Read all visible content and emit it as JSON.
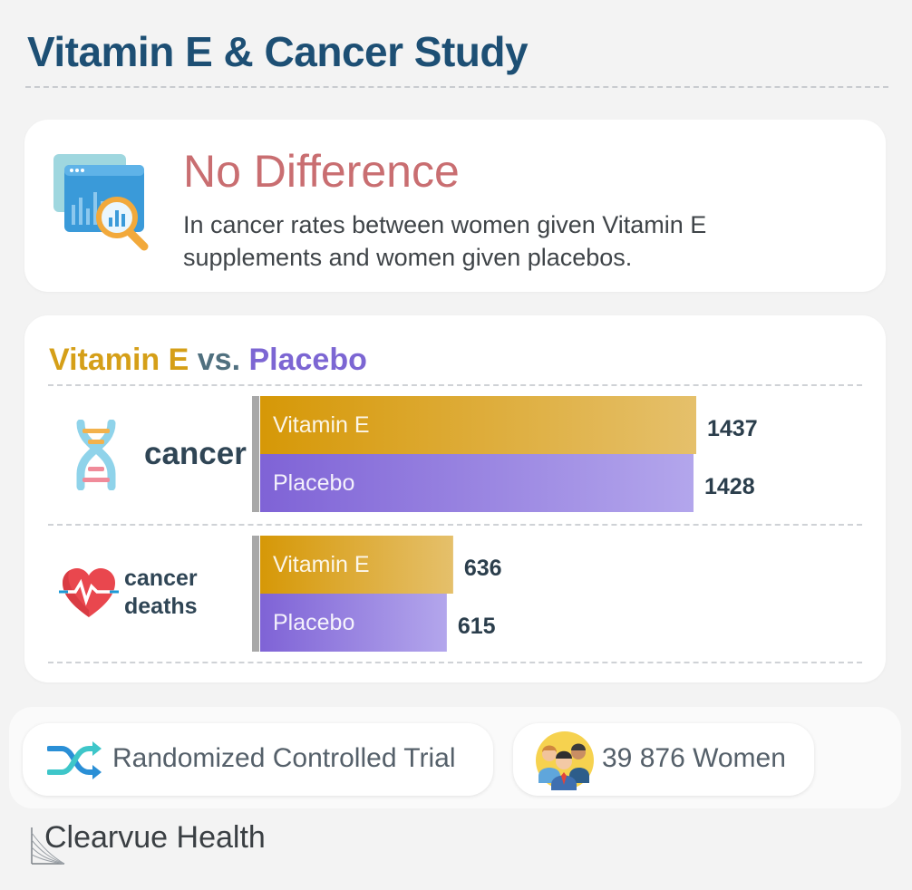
{
  "title": "Vitamin E & Cancer Study",
  "summary": {
    "headline": "No Difference",
    "text": "In cancer rates between women given Vitamin E supplements and women given placebos."
  },
  "chart_title": {
    "vitamin": "Vitamin E",
    "vs": "vs.",
    "placebo": "Placebo"
  },
  "colors": {
    "vitamin": "#d59a0e",
    "placebo": "#8066d8",
    "headline": "#c96e71",
    "title": "#1d4f74"
  },
  "chart_data": {
    "type": "bar",
    "orientation": "horizontal",
    "categories": [
      "cancer",
      "cancer deaths"
    ],
    "category_labels": {
      "big": "cancer",
      "small_line1": "cancer",
      "small_line2": "deaths"
    },
    "series": [
      {
        "name": "Vitamin E",
        "values": [
          1437,
          636
        ]
      },
      {
        "name": "Placebo",
        "values": [
          1428,
          615
        ]
      }
    ],
    "xlim": [
      0,
      1437
    ],
    "grid": false,
    "legend": "none"
  },
  "footer": {
    "design": "Randomized Controlled Trial",
    "participants": "39 876 Women",
    "brand": "Clearvue Health",
    "design_icon": "shuffle-icon",
    "participants_icon": "people-icon"
  }
}
